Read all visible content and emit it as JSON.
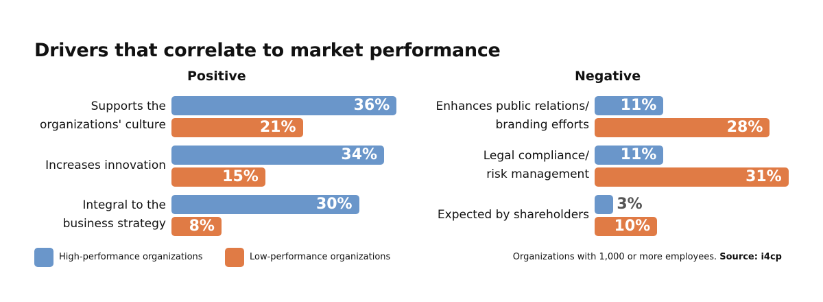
{
  "chart_data": {
    "type": "bar",
    "orientation": "horizontal",
    "title": "Drivers that correlate to market performance",
    "xlim": [
      0,
      40
    ],
    "grid": false,
    "legend_position": "bottom-left",
    "series_names": [
      "High-performance organizations",
      "Low-performance organizations"
    ],
    "colors": {
      "high": "#6a96ca",
      "low": "#e07b45"
    },
    "panels": [
      {
        "title": "Positive",
        "categories": [
          "Supports the\norganizations' culture",
          "Increases innovation",
          "Integral to the\nbusiness strategy"
        ],
        "series": [
          {
            "name": "High-performance organizations",
            "values": [
              36,
              34,
              30
            ]
          },
          {
            "name": "Low-performance organizations",
            "values": [
              21,
              15,
              8
            ]
          }
        ]
      },
      {
        "title": "Negative",
        "categories": [
          "Enhances public relations/\nbranding efforts",
          "Legal compliance/\nrisk management",
          "Expected by shareholders"
        ],
        "series": [
          {
            "name": "High-performance organizations",
            "values": [
              11,
              11,
              3
            ]
          },
          {
            "name": "Low-performance organizations",
            "values": [
              28,
              31,
              10
            ]
          }
        ]
      }
    ]
  },
  "legend": {
    "high": "High-performance organizations",
    "low": "Low-performance organizations"
  },
  "note": {
    "text": "Organizations with 1,000 or more employees. ",
    "source": "Source: i4cp"
  }
}
